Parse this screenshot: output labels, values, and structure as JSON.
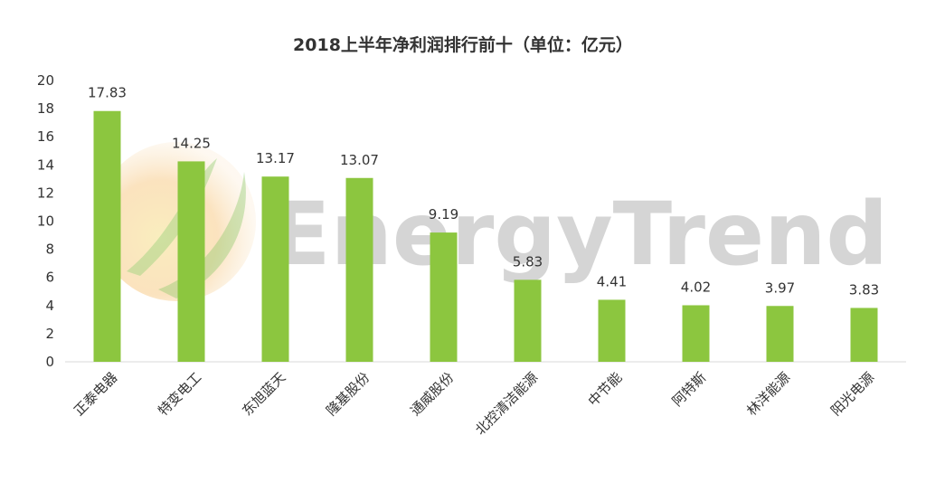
{
  "chart_data": {
    "type": "bar",
    "title": "2018上半年净利润排行前十（单位：亿元）",
    "xlabel": "",
    "ylabel": "",
    "categories": [
      "正泰电器",
      "特变电工",
      "东旭蓝天",
      "隆基股份",
      "通威股份",
      "北控清洁能源",
      "中节能",
      "阿特斯",
      "林洋能源",
      "阳光电源"
    ],
    "values": [
      17.83,
      14.25,
      13.17,
      13.07,
      9.19,
      5.83,
      4.41,
      4.02,
      3.97,
      3.83
    ],
    "ylim": [
      0,
      20
    ],
    "yticks": [
      0,
      2,
      4,
      6,
      8,
      10,
      12,
      14,
      16,
      18,
      20
    ],
    "grid": false,
    "legend": "none",
    "bar_color": "#8cc63f",
    "data_labels": true
  },
  "watermark": {
    "text": "EnergyTrend"
  }
}
